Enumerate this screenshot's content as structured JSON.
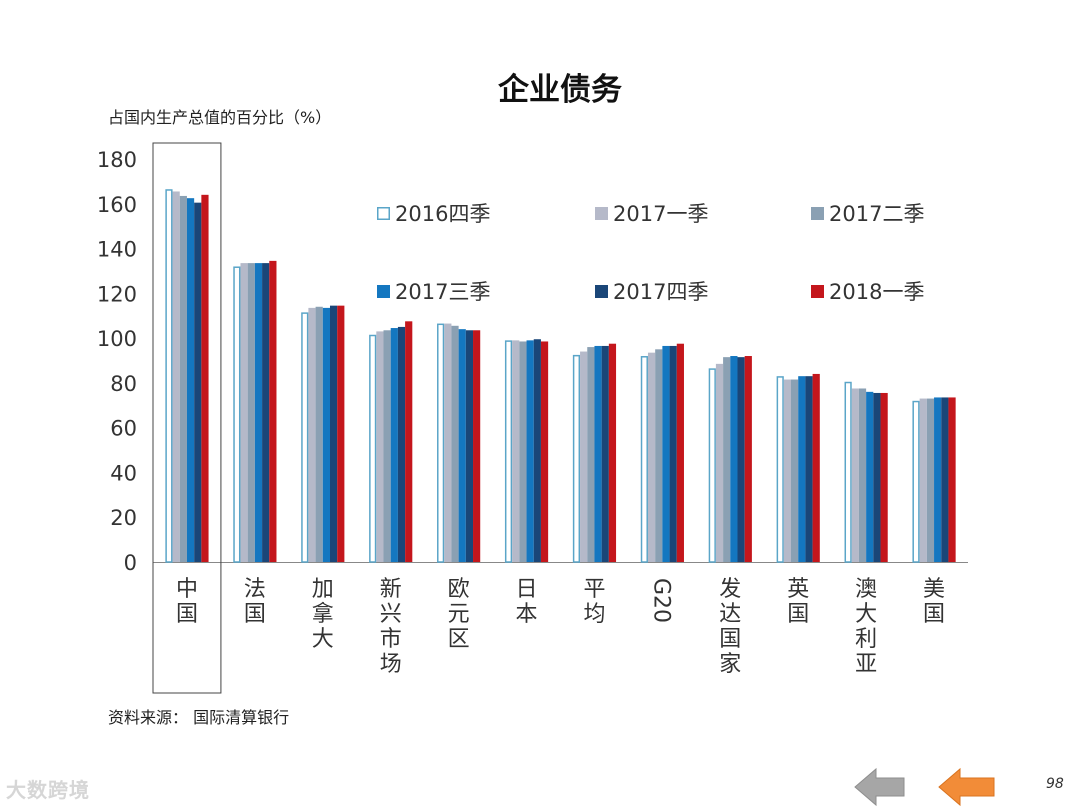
{
  "title": "企业债务",
  "y_axis_label": "占国内生产总值的百分比（%）",
  "source": "资料来源：  国际清算银行",
  "page_number": "98",
  "watermark": "大数跨境",
  "nav": {
    "prev_icon": "arrow-left-icon",
    "next_icon": "arrow-left-icon"
  },
  "colors": {
    "s2016q4": "#5aa5c8",
    "s2017q1": "#b5b9c9",
    "s2017q2": "#8aa0b3",
    "s2017q3": "#1477c0",
    "s2017q4": "#1a4678",
    "s2018q1": "#c4161c",
    "highlight_box": "#444444",
    "prev_arrow": "#a6a6a6",
    "next_arrow": "#f28c38"
  },
  "chart_data": {
    "type": "bar",
    "title": "企业债务",
    "ylabel": "占国内生产总值的百分比（%）",
    "xlabel": "",
    "ylim": [
      0,
      180
    ],
    "yticks": [
      0,
      20,
      40,
      60,
      80,
      100,
      120,
      140,
      160,
      180
    ],
    "categories": [
      "中国",
      "法国",
      "加拿大",
      "新兴市场",
      "欧元区",
      "日本",
      "平均",
      "G20",
      "发达国家",
      "英国",
      "澳大利亚",
      "美国"
    ],
    "highlight_category": "中国",
    "legend_placement": "top-right",
    "series": [
      {
        "name": "2016四季",
        "key": "s2016q4",
        "style": "outline",
        "values": [
          166.5,
          132,
          111.5,
          101.5,
          106.5,
          99,
          92.5,
          92,
          86.5,
          83,
          80.5,
          72
        ]
      },
      {
        "name": "2017一季",
        "key": "s2017q1",
        "style": "fill",
        "values": [
          165.5,
          133.5,
          113.5,
          103,
          106.5,
          99,
          94,
          93.5,
          88.5,
          81.5,
          77.5,
          73
        ]
      },
      {
        "name": "2017二季",
        "key": "s2017q2",
        "style": "fill",
        "values": [
          163.5,
          133.5,
          114,
          103.5,
          105.5,
          98.5,
          96,
          95,
          91.5,
          81.5,
          77.5,
          73
        ]
      },
      {
        "name": "2017三季",
        "key": "s2017q3",
        "style": "fill",
        "values": [
          162.5,
          133.5,
          113.5,
          104.5,
          104,
          99,
          96.5,
          96.5,
          92,
          83,
          76,
          73.5
        ]
      },
      {
        "name": "2017四季",
        "key": "s2017q4",
        "style": "fill",
        "values": [
          160.5,
          133.5,
          114.5,
          105,
          103.5,
          99.5,
          96.5,
          96.5,
          91.5,
          83,
          75.5,
          73.5
        ]
      },
      {
        "name": "2018一季",
        "key": "s2018q1",
        "style": "fill",
        "values": [
          164,
          134.5,
          114.5,
          107.5,
          103.5,
          98.5,
          97.5,
          97.5,
          92,
          84,
          75.5,
          73.5
        ]
      }
    ]
  }
}
